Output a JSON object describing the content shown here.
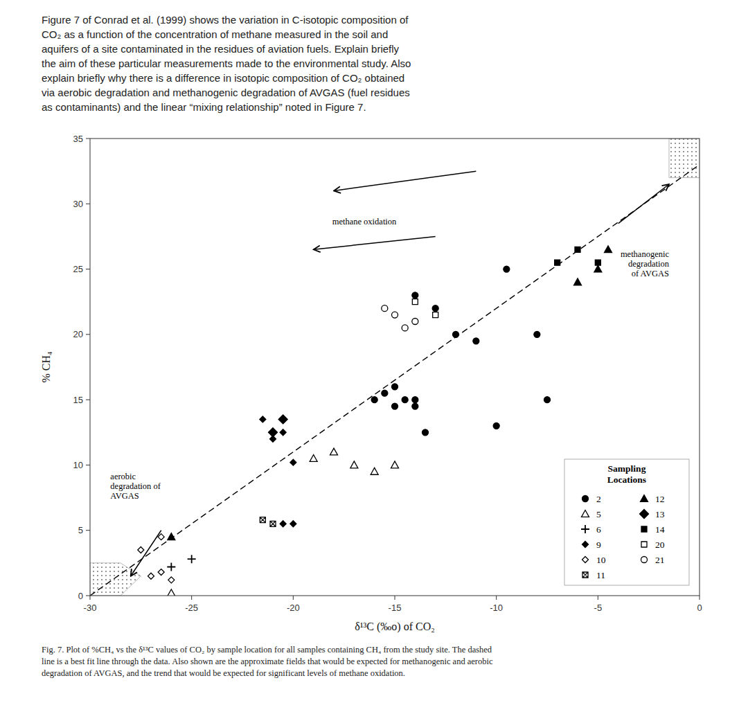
{
  "chart_data": {
    "type": "scatter",
    "title": "Figure 7 of Conrad et al. (1999) shows the variation in C-isotopic composition of\nCO₂ as a function of the concentration of methane measured in the soil and\naquifers of a site contaminated in the residues of aviation fuels. Explain briefly\nthe aim of these particular measurements made to the environmental study. Also\nexplain briefly why there is a difference in isotopic composition of CO₂ obtained\nvia aerobic degradation and methanogenic degradation of AVGAS (fuel residues\nas contaminants) and the linear “mixing relationship” noted in Figure 7.",
    "caption": "Fig. 7. Plot of %CH₄ vs the δ¹³C values of CO₂ by sample location for all samples containing CH₄ from the study site. The dashed\nline is a best fit line through the data. Also shown are the approximate fields that would be expected for methanogenic and aerobic\ndegradation of AVGAS, and the trend that would be expected for significant levels of methane oxidation.",
    "x_label": "δ¹³C (‰o) of CO₂",
    "y_label": "% CH₄",
    "xlim": [
      -30,
      0
    ],
    "ylim": [
      0,
      35
    ],
    "xticks": [
      -30,
      -25,
      -20,
      -15,
      -10,
      -5,
      0
    ],
    "yticks": [
      0,
      5,
      10,
      15,
      20,
      25,
      30,
      35
    ],
    "grid": false,
    "legend": "lower right",
    "legend_title": "Sampling\nLocations",
    "series": [
      {
        "type": "line",
        "line_style": "dashed",
        "color": "#000000",
        "x": [
          -30,
          0
        ],
        "values": [
          0,
          33
        ]
      },
      {
        "name": "2",
        "marker": "circle",
        "color": "#000000",
        "x": [
          -16,
          -15.5,
          -15,
          -14.5,
          -14,
          -14,
          -15,
          -13.5,
          -14,
          -13,
          -12,
          -11,
          -9.5,
          -8,
          -7.5,
          -10
        ],
        "values": [
          15,
          15.5,
          16,
          15,
          15,
          14.5,
          14.5,
          12.5,
          23,
          22,
          20,
          19.5,
          25,
          20,
          15,
          13
        ]
      },
      {
        "name": "5",
        "marker": "triangle-open",
        "color": "#000000",
        "x": [
          -26,
          -19,
          -18,
          -17,
          -16,
          -15
        ],
        "values": [
          0.2,
          10.5,
          11,
          10,
          9.5,
          10
        ]
      },
      {
        "name": "6",
        "marker": "plus",
        "color": "#000000",
        "x": [
          -26,
          -25
        ],
        "values": [
          2.2,
          2.8
        ]
      },
      {
        "name": "9",
        "marker": "diamond",
        "color": "#000000",
        "x": [
          -21.5,
          -21,
          -20.5,
          -20,
          -20.5,
          -20
        ],
        "values": [
          13.5,
          12,
          12.5,
          10.2,
          5.5,
          5.5
        ]
      },
      {
        "name": "10",
        "marker": "diamond-open",
        "color": "#000000",
        "x": [
          -27.5,
          -27,
          -26.5,
          -26,
          -26.5
        ],
        "values": [
          3.5,
          1.5,
          1.8,
          1.2,
          4.5
        ]
      },
      {
        "name": "11",
        "marker": "square-crossed",
        "color": "#000000",
        "x": [
          -21.5,
          -21
        ],
        "values": [
          5.8,
          5.5
        ]
      },
      {
        "name": "12",
        "marker": "triangle",
        "color": "#000000",
        "x": [
          -26,
          -4.5,
          -5,
          -6
        ],
        "values": [
          4.5,
          26.5,
          25,
          24
        ]
      },
      {
        "name": "13",
        "marker": "diamond-large",
        "color": "#000000",
        "x": [
          -20.5,
          -21
        ],
        "values": [
          13.5,
          12.5
        ]
      },
      {
        "name": "14",
        "marker": "square",
        "color": "#000000",
        "x": [
          -5,
          -6,
          -7
        ],
        "values": [
          25.5,
          26.5,
          25.5
        ]
      },
      {
        "name": "20",
        "marker": "square-open",
        "color": "#000000",
        "x": [
          -13,
          -14
        ],
        "values": [
          21.5,
          22.5
        ]
      },
      {
        "name": "21",
        "marker": "circle-open",
        "color": "#000000",
        "x": [
          -14,
          -14.5,
          -15,
          -15.5
        ],
        "values": [
          21,
          20.5,
          21.5,
          22
        ]
      }
    ],
    "regions": [
      [
        [
          -30,
          0
        ],
        [
          -28.5,
          0
        ],
        [
          -27.5,
          1.5
        ],
        [
          -28.5,
          2.5
        ],
        [
          -30,
          2.5
        ]
      ],
      [
        [
          -1.5,
          32
        ],
        [
          0,
          32
        ],
        [
          0,
          35
        ],
        [
          -1.5,
          35
        ]
      ]
    ],
    "annotations": [
      {
        "text": "methane oxidation",
        "x": -16.5,
        "y": 29,
        "align": "center",
        "arrows": [
          {
            "from": [
              -11,
              32.5
            ],
            "to": [
              -18,
              31
            ]
          },
          {
            "from": [
              -13,
              27.5
            ],
            "to": [
              -19,
              26.5
            ]
          }
        ]
      },
      {
        "text": "methanogenic\ndegradation\nof AVGAS",
        "x": -1.5,
        "y": 26.5,
        "align": "right",
        "arrows": [
          {
            "from": [
              -4,
              28.5
            ],
            "to": [
              -1.5,
              31.5
            ]
          }
        ]
      },
      {
        "text": "aerobic\ndegradation of\nAVGAS",
        "x": -29,
        "y": 9.5,
        "align": "left",
        "arrows": [
          {
            "from": [
              -26.5,
              5
            ],
            "to": [
              -28,
              1.5
            ]
          }
        ]
      }
    ]
  }
}
